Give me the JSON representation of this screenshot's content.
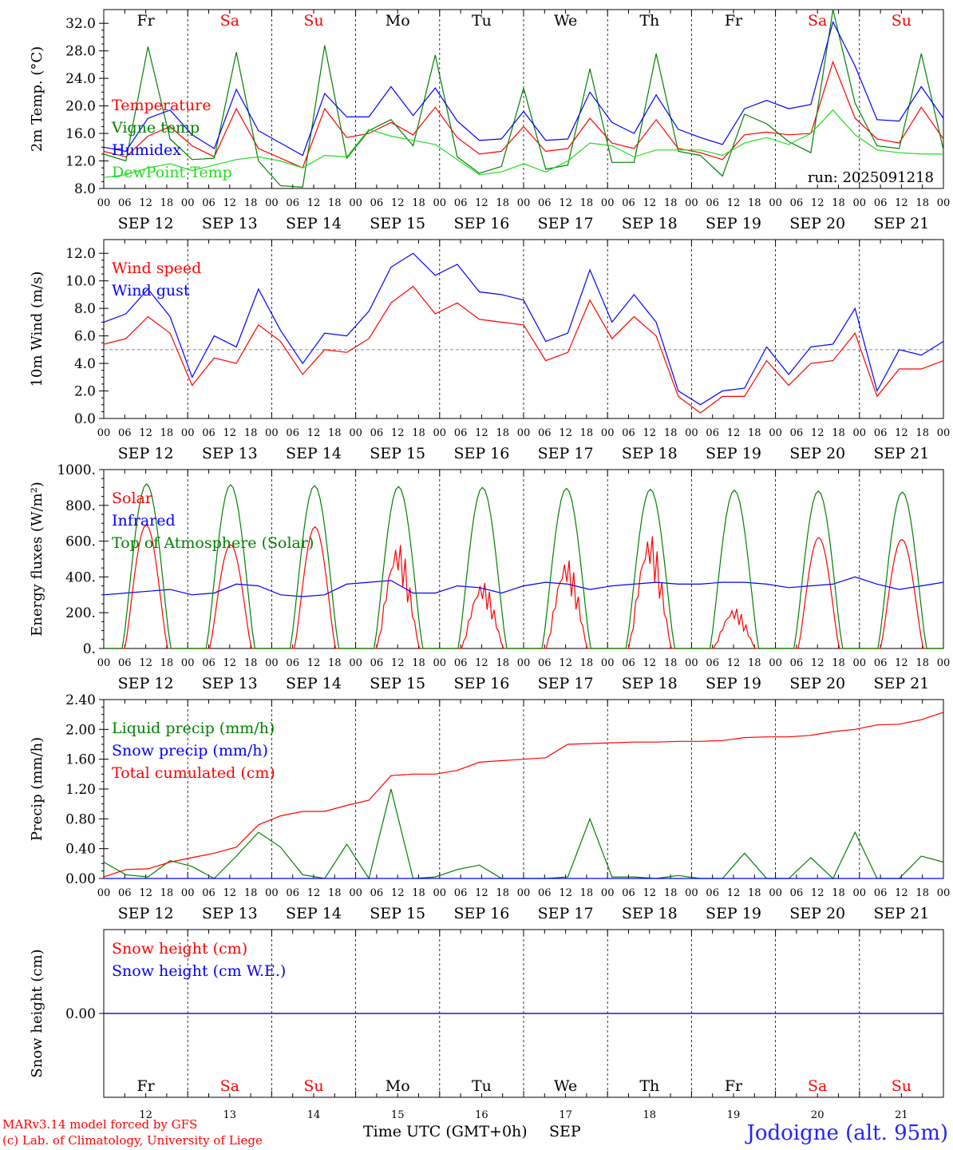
{
  "header": {
    "run_label": "run: 2025091218",
    "credits": [
      "MARv3.14 model forced by GFS",
      "(c) Lab. of Climatology, University of Liege"
    ],
    "xaxis_title": "Time UTC (GMT+0h)",
    "month": "SEP",
    "location": "Jodoigne (alt. 95m)"
  },
  "days": {
    "weekdays": [
      "Fr",
      "Sa",
      "Su",
      "Mo",
      "Tu",
      "We",
      "Th",
      "Fr",
      "Sa",
      "Su"
    ],
    "weekend_flags": [
      false,
      true,
      true,
      false,
      false,
      false,
      false,
      false,
      true,
      true
    ],
    "dates": [
      "SEP 12",
      "SEP 13",
      "SEP 14",
      "SEP 15",
      "SEP 16",
      "SEP 17",
      "SEP 18",
      "SEP 19",
      "SEP 20",
      "SEP 21"
    ],
    "day_numbers": [
      "12",
      "13",
      "14",
      "15",
      "16",
      "17",
      "18",
      "19",
      "20",
      "21"
    ],
    "hour_ticks": [
      "00",
      "06",
      "12",
      "18"
    ],
    "hour_end": "00"
  },
  "colors": {
    "red": "#ff0000",
    "green": "#008000",
    "blue": "#0000ff",
    "lightgreen": "#22dd22",
    "grey": "#888888"
  },
  "chart_data": [
    {
      "type": "line",
      "ylabel": "2m Temp. (°C)",
      "ylim": [
        8,
        34
      ],
      "yticks": [
        "8.0",
        "12.0",
        "16.0",
        "20.0",
        "24.0",
        "28.0",
        "32.0"
      ],
      "legend": [
        "Temperature",
        "Vigne temp",
        "Humidex",
        "DewPoint Temp"
      ],
      "series": [
        {
          "name": "Temperature",
          "color": "red",
          "values": [
            13.4,
            12.6,
            15.6,
            17.0,
            14.2,
            12.6,
            19.6,
            13.8,
            12.4,
            11.0,
            19.6,
            15.4,
            16.0,
            17.6,
            15.8,
            19.8,
            15.4,
            13.0,
            13.4,
            17.0,
            13.4,
            13.8,
            18.2,
            14.6,
            13.8,
            18.0,
            13.8,
            13.2,
            12.2,
            15.8,
            16.2,
            15.8,
            16.0,
            26.4,
            18.2,
            15.2,
            14.6,
            19.8,
            15.2
          ]
        },
        {
          "name": "Vigne temp",
          "color": "green",
          "values": [
            13.0,
            12.0,
            28.6,
            15.2,
            12.2,
            12.4,
            27.8,
            12.0,
            8.4,
            8.2,
            28.8,
            12.4,
            16.4,
            18.0,
            14.2,
            27.4,
            12.6,
            10.2,
            11.2,
            22.6,
            10.8,
            11.4,
            25.4,
            11.8,
            11.8,
            27.6,
            13.4,
            12.8,
            9.8,
            18.8,
            17.4,
            14.8,
            13.2,
            34.0,
            20.4,
            14.2,
            13.8,
            27.6,
            13.6
          ]
        },
        {
          "name": "Humidex",
          "color": "blue",
          "values": [
            14.0,
            13.4,
            18.2,
            19.4,
            15.8,
            13.8,
            22.4,
            16.4,
            14.6,
            12.8,
            21.8,
            18.4,
            18.4,
            22.8,
            18.6,
            22.6,
            17.8,
            15.0,
            15.2,
            19.2,
            15.0,
            15.2,
            22.0,
            17.6,
            16.0,
            21.6,
            16.6,
            15.4,
            14.4,
            19.6,
            20.8,
            19.6,
            20.2,
            32.2,
            25.8,
            18.0,
            17.8,
            22.8,
            18.2
          ]
        },
        {
          "name": "DewPoint Temp",
          "color": "lightgreen",
          "values": [
            9.6,
            10.0,
            11.0,
            11.6,
            10.6,
            11.4,
            12.2,
            12.6,
            12.0,
            11.0,
            12.8,
            12.6,
            16.6,
            15.6,
            15.0,
            14.4,
            12.2,
            10.0,
            10.4,
            11.6,
            10.4,
            12.0,
            14.6,
            14.2,
            12.6,
            13.6,
            13.6,
            13.6,
            12.8,
            14.6,
            15.4,
            14.4,
            16.0,
            19.4,
            15.8,
            13.6,
            13.2,
            13.0,
            13.0
          ]
        }
      ]
    },
    {
      "type": "line",
      "ylabel": "10m Wind (m/s)",
      "ylim": [
        0,
        13
      ],
      "yticks": [
        "0.0",
        "2.0",
        "4.0",
        "6.0",
        "8.0",
        "10.0",
        "12.0"
      ],
      "reference_line": 5,
      "legend": [
        "Wind speed",
        "Wind gust"
      ],
      "series": [
        {
          "name": "Wind speed",
          "color": "red",
          "values": [
            5.4,
            5.8,
            7.4,
            6.2,
            2.4,
            4.4,
            4.0,
            6.8,
            5.6,
            3.2,
            5.0,
            4.8,
            5.8,
            8.4,
            9.6,
            7.6,
            8.4,
            7.2,
            7.0,
            6.8,
            4.2,
            4.8,
            8.6,
            5.8,
            7.4,
            6.0,
            1.6,
            0.4,
            1.6,
            1.6,
            4.2,
            2.4,
            4.0,
            4.2,
            6.2,
            1.6,
            3.6,
            3.6,
            4.2
          ]
        },
        {
          "name": "Wind gust",
          "color": "blue",
          "values": [
            7.0,
            7.6,
            9.4,
            7.4,
            3.0,
            6.0,
            5.2,
            9.4,
            6.4,
            4.0,
            6.2,
            6.0,
            7.8,
            11.0,
            12.0,
            10.4,
            11.2,
            9.2,
            9.0,
            8.6,
            5.6,
            6.2,
            10.8,
            7.0,
            9.0,
            7.0,
            2.0,
            1.0,
            2.0,
            2.2,
            5.2,
            3.2,
            5.2,
            5.4,
            8.0,
            2.0,
            5.0,
            4.6,
            5.6
          ]
        }
      ]
    },
    {
      "type": "line",
      "ylabel": "Energy fluxes (W/m²)",
      "ylim": [
        0,
        1000
      ],
      "yticks": [
        "0.",
        "200.",
        "400.",
        "600.",
        "800.",
        "1000."
      ],
      "legend": [
        "Solar",
        "Infrared",
        "Top of Atmosphere (Solar)"
      ],
      "series": [
        {
          "name": "Solar",
          "color": "red",
          "peaks": [
            690,
            580,
            680,
            600,
            380,
            510,
            650,
            230,
            620,
            610
          ]
        },
        {
          "name": "Infrared",
          "color": "blue",
          "values": [
            300,
            310,
            320,
            330,
            300,
            310,
            360,
            350,
            300,
            290,
            300,
            360,
            370,
            380,
            310,
            310,
            350,
            340,
            310,
            350,
            370,
            360,
            330,
            350,
            360,
            370,
            360,
            360,
            370,
            370,
            360,
            340,
            350,
            360,
            400,
            360,
            330,
            350,
            370
          ]
        },
        {
          "name": "Top of Atmosphere (Solar)",
          "color": "green",
          "peaks": [
            920,
            915,
            910,
            905,
            900,
            895,
            890,
            885,
            880,
            875
          ]
        }
      ]
    },
    {
      "type": "line",
      "ylabel": "Precip (mm/h)",
      "ylim": [
        0,
        2.4
      ],
      "yticks": [
        "0.00",
        "0.40",
        "0.80",
        "1.20",
        "1.60",
        "2.00",
        "2.40"
      ],
      "legend": [
        "Liquid precip (mm/h)",
        "Snow precip (mm/h)",
        "Total cumulated (cm)"
      ],
      "series": [
        {
          "name": "Liquid precip (mm/h)",
          "color": "green",
          "values": [
            0.22,
            0.05,
            0.02,
            0.24,
            0.16,
            0.0,
            0.3,
            0.62,
            0.42,
            0.05,
            0.0,
            0.46,
            0.0,
            1.2,
            0.0,
            0.02,
            0.12,
            0.18,
            0.0,
            0.0,
            0.0,
            0.02,
            0.8,
            0.02,
            0.02,
            0.0,
            0.04,
            0.0,
            0.0,
            0.34,
            0.0,
            0.0,
            0.28,
            0.0,
            0.62,
            0.0,
            0.0,
            0.3,
            0.22
          ]
        },
        {
          "name": "Snow precip (mm/h)",
          "color": "blue",
          "values": [
            0,
            0,
            0,
            0,
            0,
            0,
            0,
            0,
            0,
            0,
            0,
            0,
            0,
            0,
            0,
            0,
            0,
            0,
            0,
            0,
            0,
            0,
            0,
            0,
            0,
            0,
            0,
            0,
            0,
            0,
            0,
            0,
            0,
            0,
            0,
            0,
            0,
            0,
            0
          ]
        },
        {
          "name": "Total cumulated (cm)",
          "color": "red",
          "values": [
            0.02,
            0.12,
            0.13,
            0.22,
            0.28,
            0.34,
            0.42,
            0.72,
            0.84,
            0.9,
            0.9,
            0.98,
            1.05,
            1.38,
            1.4,
            1.4,
            1.45,
            1.56,
            1.58,
            1.6,
            1.62,
            1.8,
            1.81,
            1.82,
            1.83,
            1.83,
            1.84,
            1.84,
            1.85,
            1.89,
            1.9,
            1.9,
            1.92,
            1.97,
            2.0,
            2.06,
            2.07,
            2.13,
            2.23
          ]
        }
      ]
    },
    {
      "type": "line",
      "ylabel": "Snow height (cm)",
      "yticks": [
        "0.00"
      ],
      "legend": [
        "Snow height (cm)",
        "Snow height (cm W.E.)"
      ],
      "series": [
        {
          "name": "Snow height (cm)",
          "color": "red",
          "values": [
            0,
            0,
            0,
            0,
            0,
            0,
            0,
            0,
            0,
            0,
            0,
            0,
            0,
            0,
            0,
            0,
            0,
            0,
            0,
            0,
            0,
            0,
            0,
            0,
            0,
            0,
            0,
            0,
            0,
            0,
            0,
            0,
            0,
            0,
            0,
            0,
            0,
            0,
            0
          ]
        },
        {
          "name": "Snow height (cm W.E.)",
          "color": "blue",
          "values": [
            0,
            0,
            0,
            0,
            0,
            0,
            0,
            0,
            0,
            0,
            0,
            0,
            0,
            0,
            0,
            0,
            0,
            0,
            0,
            0,
            0,
            0,
            0,
            0,
            0,
            0,
            0,
            0,
            0,
            0,
            0,
            0,
            0,
            0,
            0,
            0,
            0,
            0,
            0
          ]
        }
      ]
    }
  ]
}
